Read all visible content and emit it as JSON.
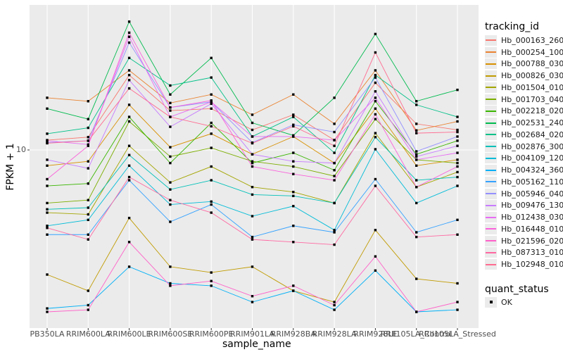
{
  "chart_data": {
    "type": "line",
    "title": "",
    "xlabel": "sample_name",
    "ylabel": "FPKM + 1",
    "y_axis": {
      "scale": "log10",
      "tick_labels": [
        "10"
      ],
      "tick_values": [
        10
      ]
    },
    "grid": true,
    "panel_bg": "#ebebeb",
    "grid_color": "#ffffff",
    "point": {
      "shape": "square",
      "color": "#000000"
    },
    "legend": {
      "position": "right",
      "color_title": "tracking_id",
      "shape_title": "quant_status",
      "shape_items": [
        {
          "label": "OK"
        }
      ]
    },
    "categories": [
      "PB350LA",
      "RRIM600LA",
      "RRIM600LE",
      "RRIM600SE",
      "RRIM600PE",
      "RRIM901LA",
      "RRIM928BA",
      "RRIM928LA",
      "RRIM928LE",
      "RRII105LA_Control",
      "RRII105LA_Stressed"
    ],
    "series": [
      {
        "name": "Hb_000163_260",
        "color": "#F8766D",
        "values": [
          11.5,
          12,
          29,
          17.5,
          18,
          13.3,
          16.5,
          11.5,
          26,
          14.5,
          13.3
        ]
      },
      {
        "name": "Hb_000254_100",
        "color": "#EA8331",
        "values": [
          21,
          20,
          31,
          19.5,
          22,
          16.5,
          22,
          14.5,
          31,
          13.2,
          15
        ]
      },
      {
        "name": "Hb_000788_030",
        "color": "#D89000",
        "values": [
          8,
          8.5,
          19,
          10.4,
          12.6,
          9.4,
          12.1,
          8.3,
          18,
          8,
          8.7
        ]
      },
      {
        "name": "Hb_000826_030",
        "color": "#C09B00",
        "values": [
          1.7,
          1.35,
          3.8,
          1.9,
          1.75,
          1.9,
          1.35,
          1.15,
          3.2,
          1.6,
          1.5
        ]
      },
      {
        "name": "Hb_001504_010",
        "color": "#A3A500",
        "values": [
          4.1,
          4.0,
          10.6,
          6.3,
          7.9,
          5.9,
          5.5,
          4.7,
          12.7,
          5.9,
          7.3
        ]
      },
      {
        "name": "Hb_001703_040",
        "color": "#7CAE00",
        "values": [
          4.7,
          4.9,
          15,
          9.1,
          10.3,
          8.5,
          7.9,
          6.9,
          15.5,
          8.7,
          8.3
        ]
      },
      {
        "name": "Hb_002218_020",
        "color": "#39B600",
        "values": [
          6.0,
          6.2,
          16,
          8.3,
          14.7,
          8.3,
          9.6,
          7.5,
          20,
          9.4,
          11.4
        ]
      },
      {
        "name": "Hb_002531_240",
        "color": "#00BB4E",
        "values": [
          18,
          15.5,
          62,
          22,
          37,
          14.7,
          12.3,
          21,
          52,
          20,
          23.5
        ]
      },
      {
        "name": "Hb_002684_020",
        "color": "#00C087",
        "values": [
          12.6,
          13.7,
          37,
          25,
          28,
          12.1,
          16,
          9.6,
          29,
          19,
          16
        ]
      },
      {
        "name": "Hb_002876_300",
        "color": "#00C0B8",
        "values": [
          4.3,
          4.4,
          9.3,
          5.7,
          6.5,
          5.3,
          5.2,
          4.7,
          12,
          6.5,
          6.8
        ]
      },
      {
        "name": "Hb_004109_120",
        "color": "#00BCD8",
        "values": [
          3.4,
          3.7,
          8,
          4.6,
          4.8,
          3.9,
          4.5,
          3.2,
          10.1,
          4.7,
          6.0
        ]
      },
      {
        "name": "Hb_004324_360",
        "color": "#00B0F6",
        "values": [
          1.05,
          1.1,
          1.9,
          1.5,
          1.45,
          1.15,
          1.35,
          1.03,
          1.8,
          1.0,
          1.03
        ]
      },
      {
        "name": "Hb_005162_110",
        "color": "#35A2FF",
        "values": [
          3.0,
          3.0,
          6.5,
          3.6,
          4.6,
          2.9,
          3.4,
          3.1,
          6.6,
          3.1,
          3.7
        ]
      },
      {
        "name": "Hb_005946_040",
        "color": "#9590FF",
        "values": [
          11.1,
          11.4,
          46,
          18.3,
          19.8,
          11.1,
          14.3,
          12.9,
          28,
          9.8,
          12.1
        ]
      },
      {
        "name": "Hb_009476_130",
        "color": "#C77CFF",
        "values": [
          8.7,
          7.7,
          27,
          13.9,
          19.3,
          9.4,
          8.5,
          8.3,
          23,
          9.1,
          10.6
        ]
      },
      {
        "name": "Hb_012438_030",
        "color": "#E76BF3",
        "values": [
          11.4,
          10.8,
          50,
          16,
          19.8,
          12.1,
          12.1,
          11.5,
          21,
          8.7,
          9.6
        ]
      },
      {
        "name": "Hb_016448_010",
        "color": "#FA62DB",
        "values": [
          6.6,
          10.6,
          53,
          18.3,
          20.2,
          7.9,
          7.1,
          6.5,
          16.6,
          5.9,
          7.9
        ]
      },
      {
        "name": "Hb_021596_020",
        "color": "#FF61C9",
        "values": [
          1.0,
          1.03,
          2.7,
          1.45,
          1.55,
          1.25,
          1.45,
          1.1,
          2.2,
          1.0,
          1.15
        ]
      },
      {
        "name": "Hb_087313_010",
        "color": "#FF68A1",
        "values": [
          3.3,
          2.8,
          6.8,
          4.9,
          4.1,
          2.8,
          2.7,
          2.6,
          6.0,
          2.9,
          3.0
        ]
      },
      {
        "name": "Hb_102948_010",
        "color": "#FF6C91",
        "values": [
          11,
          11.4,
          24,
          16,
          14,
          11,
          14,
          10.6,
          40,
          12.7,
          12.9
        ]
      }
    ]
  }
}
